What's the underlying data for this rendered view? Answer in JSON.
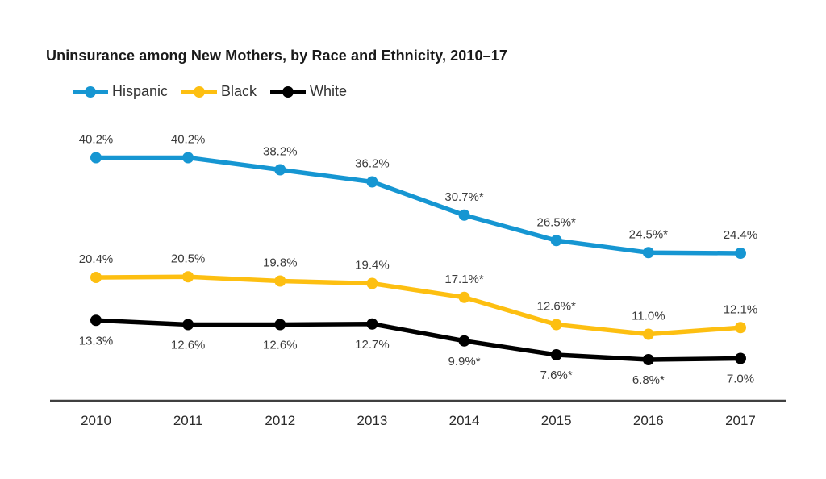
{
  "chart_data": {
    "type": "line",
    "title": "Uninsurance among New Mothers, by Race and Ethnicity, 2010–17",
    "x": [
      "2010",
      "2011",
      "2012",
      "2013",
      "2014",
      "2015",
      "2016",
      "2017"
    ],
    "series": [
      {
        "name": "Hispanic",
        "color": "#1696d2",
        "values": [
          40.2,
          40.2,
          38.2,
          36.2,
          30.7,
          26.5,
          24.5,
          24.4
        ],
        "labels": [
          "40.2%",
          "40.2%",
          "38.2%",
          "36.2%",
          "30.7%*",
          "26.5%*",
          "24.5%*",
          "24.4%"
        ],
        "label_position": "above"
      },
      {
        "name": "Black",
        "color": "#fdbf11",
        "values": [
          20.4,
          20.5,
          19.8,
          19.4,
          17.1,
          12.6,
          11.0,
          12.1
        ],
        "labels": [
          "20.4%",
          "20.5%",
          "19.8%",
          "19.4%",
          "17.1%*",
          "12.6%*",
          "11.0%",
          "12.1%"
        ],
        "label_position": "above"
      },
      {
        "name": "White",
        "color": "#000000",
        "values": [
          13.3,
          12.6,
          12.6,
          12.7,
          9.9,
          7.6,
          6.8,
          7.0
        ],
        "labels": [
          "13.3%",
          "12.6%",
          "12.6%",
          "12.7%",
          "9.9%*",
          "7.6%*",
          "6.8%*",
          "7.0%"
        ],
        "label_position": "below"
      }
    ],
    "ylim": [
      0,
      45
    ],
    "grid": false,
    "legend_position": "top-left",
    "axis_color": "#404040",
    "tick_label_color": "#2b2b2b",
    "data_label_color": "#3b3b3b"
  }
}
